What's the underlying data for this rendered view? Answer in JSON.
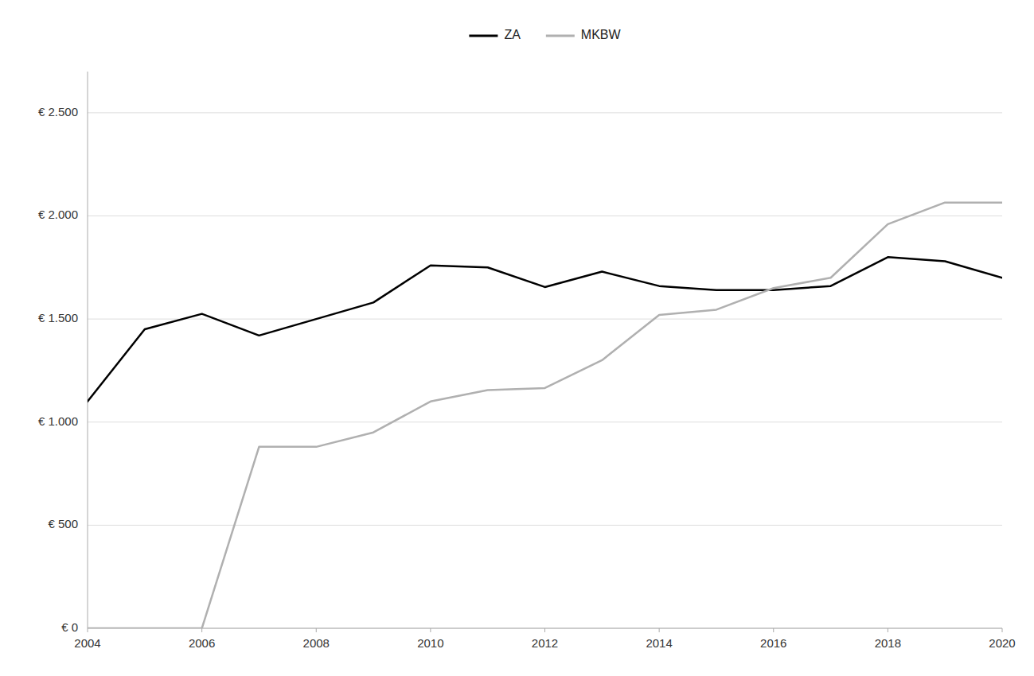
{
  "chart_data": {
    "type": "line",
    "x": [
      2004,
      2005,
      2006,
      2007,
      2008,
      2009,
      2010,
      2011,
      2012,
      2013,
      2014,
      2015,
      2016,
      2017,
      2018,
      2019,
      2020
    ],
    "series": [
      {
        "name": "ZA",
        "color": "#000000",
        "values": [
          1100,
          1450,
          1525,
          1420,
          1500,
          1580,
          1760,
          1750,
          1655,
          1730,
          1660,
          1640,
          1640,
          1660,
          1800,
          1780,
          1700
        ]
      },
      {
        "name": "MKBW",
        "color": "#b0b0b0",
        "values": [
          0,
          0,
          0,
          880,
          880,
          950,
          1100,
          1155,
          1165,
          1300,
          1520,
          1545,
          1650,
          1700,
          1960,
          2065,
          2065
        ]
      }
    ],
    "xlim": [
      2004,
      2020
    ],
    "ylim": [
      0,
      2700
    ],
    "xticks": [
      2004,
      2006,
      2008,
      2010,
      2012,
      2014,
      2016,
      2018,
      2020
    ],
    "yticks": [
      {
        "value": 0,
        "label": "€ 0"
      },
      {
        "value": 500,
        "label": "€ 500"
      },
      {
        "value": 1000,
        "label": "€ 1.000"
      },
      {
        "value": 1500,
        "label": "€ 1.500"
      },
      {
        "value": 2000,
        "label": "€ 2.000"
      },
      {
        "value": 2500,
        "label": "€ 2.500"
      }
    ],
    "grid": true,
    "legend": "top"
  }
}
